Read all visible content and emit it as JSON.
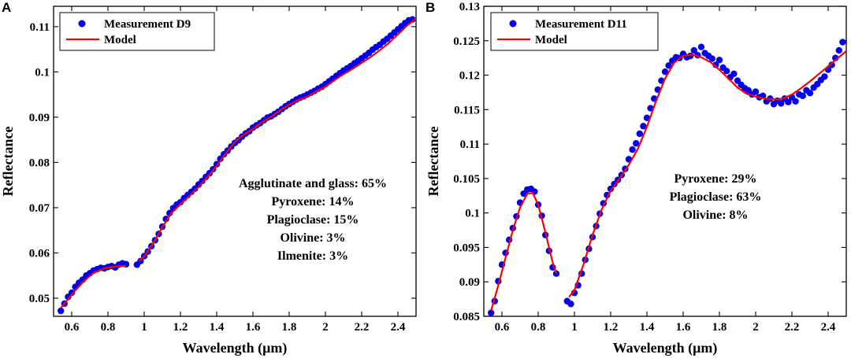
{
  "chart_data": [
    {
      "panel": "A",
      "type": "scatter",
      "xlabel": "Wavelength (μm)",
      "ylabel": "Reflectance",
      "xlim": [
        0.5,
        2.5
      ],
      "ylim": [
        0.046,
        0.1145
      ],
      "xticks": [
        0.6,
        0.8,
        1,
        1.2,
        1.4,
        1.6,
        1.8,
        2,
        2.2,
        2.4
      ],
      "xtick_labels": [
        "0.6",
        "0.8",
        "1",
        "1.2",
        "1.4",
        "1.6",
        "1.8",
        "2",
        "2.2",
        "2.4"
      ],
      "yticks": [
        0.05,
        0.06,
        0.07,
        0.08,
        0.09,
        0.1,
        0.11
      ],
      "ytick_labels": [
        "0.05",
        "0.06",
        "0.07",
        "0.08",
        "0.09",
        "0.1",
        "0.11"
      ],
      "legend_position": "top-left",
      "series": [
        {
          "name": "Measurement D9",
          "kind": "scatter",
          "color": "#0000ee",
          "x": [
            0.54,
            0.56,
            0.58,
            0.6,
            0.62,
            0.64,
            0.66,
            0.68,
            0.7,
            0.72,
            0.74,
            0.76,
            0.78,
            0.8,
            0.82,
            0.84,
            0.86,
            0.88,
            0.9,
            0.96,
            0.98,
            1.0,
            1.02,
            1.04,
            1.06,
            1.08,
            1.1,
            1.12,
            1.14,
            1.16,
            1.18,
            1.2,
            1.22,
            1.24,
            1.26,
            1.28,
            1.3,
            1.32,
            1.34,
            1.36,
            1.38,
            1.4,
            1.42,
            1.44,
            1.46,
            1.48,
            1.5,
            1.52,
            1.54,
            1.56,
            1.58,
            1.6,
            1.62,
            1.64,
            1.66,
            1.68,
            1.7,
            1.72,
            1.74,
            1.76,
            1.78,
            1.8,
            1.82,
            1.84,
            1.86,
            1.88,
            1.9,
            1.92,
            1.94,
            1.96,
            1.98,
            2.0,
            2.02,
            2.04,
            2.06,
            2.08,
            2.1,
            2.12,
            2.14,
            2.16,
            2.18,
            2.2,
            2.22,
            2.24,
            2.26,
            2.28,
            2.3,
            2.32,
            2.34,
            2.36,
            2.38,
            2.4,
            2.42,
            2.44,
            2.46,
            2.48
          ],
          "y": [
            0.0472,
            0.0488,
            0.0503,
            0.0512,
            0.0525,
            0.0534,
            0.0541,
            0.055,
            0.0555,
            0.0561,
            0.0564,
            0.0567,
            0.0566,
            0.0569,
            0.0571,
            0.0568,
            0.0574,
            0.0577,
            0.0575,
            0.0574,
            0.0582,
            0.0593,
            0.0603,
            0.0615,
            0.0628,
            0.0642,
            0.0658,
            0.0675,
            0.0688,
            0.0699,
            0.0707,
            0.0712,
            0.0721,
            0.0728,
            0.0735,
            0.0742,
            0.0751,
            0.0759,
            0.0768,
            0.0776,
            0.0785,
            0.0796,
            0.0808,
            0.0818,
            0.0826,
            0.0835,
            0.0843,
            0.0849,
            0.0857,
            0.0864,
            0.0869,
            0.0877,
            0.0882,
            0.0887,
            0.0893,
            0.0899,
            0.0902,
            0.0907,
            0.0912,
            0.0918,
            0.0924,
            0.0929,
            0.0934,
            0.0939,
            0.0943,
            0.0946,
            0.095,
            0.0954,
            0.0958,
            0.0963,
            0.0967,
            0.0973,
            0.0979,
            0.0985,
            0.0991,
            0.0997,
            0.1003,
            0.1008,
            0.1013,
            0.1019,
            0.1024,
            0.103,
            0.1036,
            0.1042,
            0.1049,
            0.1055,
            0.106,
            0.1067,
            0.1073,
            0.108,
            0.1087,
            0.1094,
            0.1101,
            0.1108,
            0.1114,
            0.1116
          ]
        },
        {
          "name": "Model",
          "kind": "line",
          "color": "#ff0000",
          "segments": [
            {
              "x": [
                0.54,
                0.6,
                0.66,
                0.72,
                0.78,
                0.84,
                0.9
              ],
              "y": [
                0.0478,
                0.0508,
                0.0535,
                0.0556,
                0.0566,
                0.057,
                0.0572
              ]
            },
            {
              "x": [
                0.97,
                1.0,
                1.05,
                1.1,
                1.15,
                1.2,
                1.25,
                1.3,
                1.35,
                1.4,
                1.45,
                1.5,
                1.55,
                1.6,
                1.65,
                1.7,
                1.75,
                1.8,
                1.85,
                1.9,
                1.95,
                2.0,
                2.05,
                2.1,
                2.15,
                2.2,
                2.25,
                2.3,
                2.35,
                2.4,
                2.45,
                2.5
              ],
              "y": [
                0.0582,
                0.0592,
                0.0622,
                0.0657,
                0.0688,
                0.0708,
                0.0726,
                0.0746,
                0.0768,
                0.0792,
                0.082,
                0.0845,
                0.0862,
                0.0874,
                0.0889,
                0.0901,
                0.0915,
                0.0928,
                0.0938,
                0.0945,
                0.0957,
                0.0967,
                0.0982,
                0.0995,
                0.1007,
                0.102,
                0.1033,
                0.1048,
                0.1064,
                0.1083,
                0.1102,
                0.1118
              ]
            }
          ]
        }
      ],
      "annotations": [
        "Agglutinate and glass: 65%",
        "Pyroxene: 14%",
        "Plagioclase: 15%",
        "Olivine: 3%",
        "Ilmenite: 3%"
      ]
    },
    {
      "panel": "B",
      "type": "scatter",
      "xlabel": "Wavelength (μm)",
      "ylabel": "Reflectance",
      "xlim": [
        0.5,
        2.5
      ],
      "ylim": [
        0.085,
        0.13
      ],
      "xticks": [
        0.6,
        0.8,
        1,
        1.2,
        1.4,
        1.6,
        1.8,
        2,
        2.2,
        2.4
      ],
      "xtick_labels": [
        "0.6",
        "0.8",
        "1",
        "1.2",
        "1.4",
        "1.6",
        "1.8",
        "2",
        "2.2",
        "2.4"
      ],
      "yticks": [
        0.085,
        0.09,
        0.095,
        0.1,
        0.105,
        0.11,
        0.115,
        0.12,
        0.125,
        0.13
      ],
      "ytick_labels": [
        "0.085",
        "0.09",
        "0.095",
        "0.1",
        "0.105",
        "0.11",
        "0.115",
        "0.12",
        "0.125",
        "0.13"
      ],
      "legend_position": "top-left",
      "series": [
        {
          "name": "Measurement D11",
          "kind": "scatter",
          "color": "#0000ee",
          "x": [
            0.54,
            0.56,
            0.58,
            0.6,
            0.62,
            0.64,
            0.66,
            0.68,
            0.7,
            0.72,
            0.74,
            0.76,
            0.78,
            0.8,
            0.82,
            0.84,
            0.86,
            0.88,
            0.9,
            0.96,
            0.98,
            1.0,
            1.02,
            1.04,
            1.06,
            1.08,
            1.1,
            1.12,
            1.14,
            1.16,
            1.18,
            1.2,
            1.22,
            1.24,
            1.26,
            1.28,
            1.3,
            1.32,
            1.34,
            1.36,
            1.38,
            1.4,
            1.42,
            1.44,
            1.46,
            1.48,
            1.5,
            1.52,
            1.54,
            1.56,
            1.58,
            1.6,
            1.62,
            1.64,
            1.66,
            1.68,
            1.7,
            1.72,
            1.74,
            1.76,
            1.78,
            1.8,
            1.82,
            1.84,
            1.86,
            1.88,
            1.9,
            1.92,
            1.94,
            1.96,
            1.98,
            2.0,
            2.02,
            2.04,
            2.06,
            2.08,
            2.1,
            2.12,
            2.14,
            2.16,
            2.18,
            2.2,
            2.22,
            2.24,
            2.26,
            2.28,
            2.3,
            2.32,
            2.34,
            2.36,
            2.38,
            2.4,
            2.42,
            2.44,
            2.46,
            2.48
          ],
          "y": [
            0.0855,
            0.0872,
            0.0901,
            0.0925,
            0.0942,
            0.0961,
            0.0978,
            0.0995,
            0.1015,
            0.1028,
            0.1034,
            0.1035,
            0.1031,
            0.1012,
            0.0996,
            0.0968,
            0.0945,
            0.0921,
            0.0912,
            0.0872,
            0.0868,
            0.0884,
            0.0895,
            0.0912,
            0.0932,
            0.0948,
            0.0965,
            0.0981,
            0.0999,
            0.1014,
            0.1026,
            0.1035,
            0.1042,
            0.1048,
            0.1055,
            0.1064,
            0.1078,
            0.1092,
            0.1101,
            0.1115,
            0.1126,
            0.1138,
            0.1152,
            0.1166,
            0.1179,
            0.1192,
            0.1205,
            0.1214,
            0.1221,
            0.1226,
            0.1225,
            0.1231,
            0.1226,
            0.1228,
            0.1236,
            0.1229,
            0.1241,
            0.1232,
            0.1228,
            0.1224,
            0.1215,
            0.1222,
            0.1211,
            0.1206,
            0.1197,
            0.1202,
            0.1192,
            0.1186,
            0.1181,
            0.1178,
            0.1172,
            0.1176,
            0.1168,
            0.117,
            0.1162,
            0.1166,
            0.1158,
            0.1163,
            0.1159,
            0.1166,
            0.1161,
            0.1168,
            0.1162,
            0.1172,
            0.117,
            0.1178,
            0.1174,
            0.1182,
            0.1187,
            0.1193,
            0.1198,
            0.1208,
            0.1215,
            0.1225,
            0.1236,
            0.1248
          ]
        },
        {
          "name": "Model",
          "kind": "line",
          "color": "#ff0000",
          "segments": [
            {
              "x": [
                0.54,
                0.58,
                0.62,
                0.66,
                0.7,
                0.74,
                0.77,
                0.8,
                0.84,
                0.88,
                0.9
              ],
              "y": [
                0.0858,
                0.0895,
                0.0935,
                0.0975,
                0.1008,
                0.1028,
                0.1029,
                0.1012,
                0.0972,
                0.0928,
                0.0912
              ]
            },
            {
              "x": [
                0.97,
                1.0,
                1.05,
                1.1,
                1.15,
                1.2,
                1.25,
                1.3,
                1.35,
                1.4,
                1.45,
                1.5,
                1.55,
                1.6,
                1.65,
                1.7,
                1.75,
                1.8,
                1.85,
                1.9,
                1.95,
                2.0,
                2.05,
                2.1,
                2.15,
                2.2,
                2.25,
                2.3,
                2.35,
                2.4,
                2.45,
                2.5
              ],
              "y": [
                0.0878,
                0.0888,
                0.0925,
                0.0968,
                0.1005,
                0.1032,
                0.105,
                0.107,
                0.1093,
                0.1125,
                0.1162,
                0.1195,
                0.1218,
                0.1228,
                0.123,
                0.1226,
                0.1219,
                0.1208,
                0.1195,
                0.1182,
                0.1173,
                0.1169,
                0.1166,
                0.1165,
                0.1166,
                0.1172,
                0.1181,
                0.1191,
                0.1202,
                0.1213,
                0.1224,
                0.1235
              ]
            }
          ]
        }
      ],
      "annotations": [
        "Pyroxene: 29%",
        "Plagioclase: 63%",
        "Olivine: 8%"
      ]
    }
  ]
}
